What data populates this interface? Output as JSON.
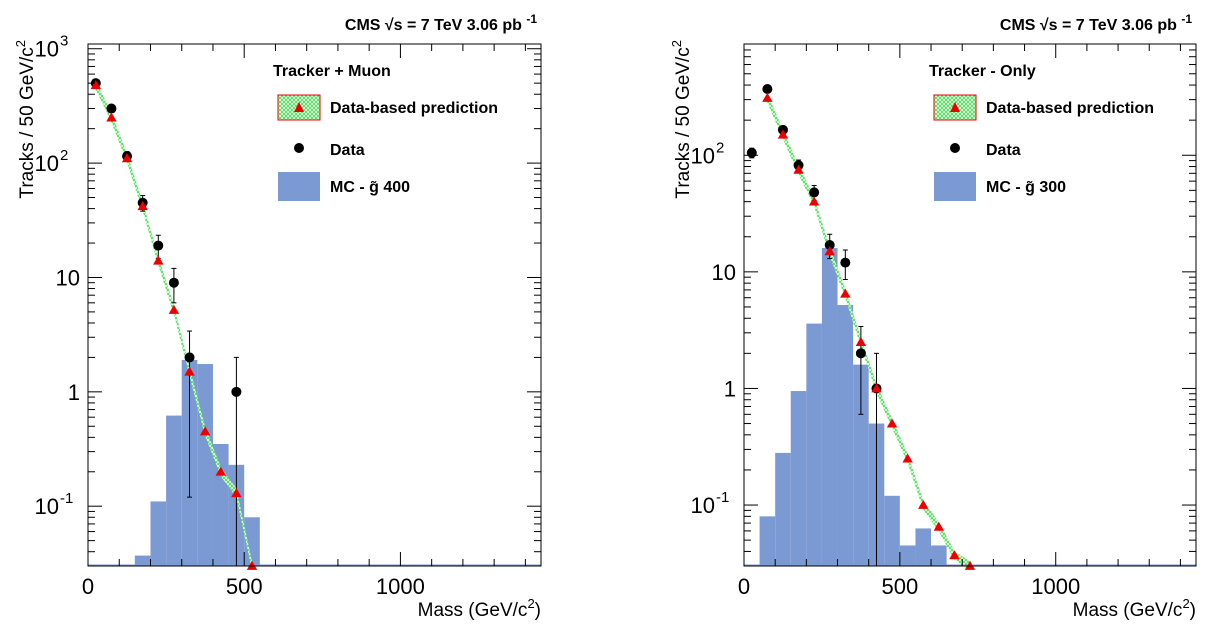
{
  "chart_data": [
    {
      "type": "bar",
      "header": {
        "experiment": "CMS",
        "energy": "√s = 7 TeV",
        "lumi": "3.06 pb",
        "lumi_exp": "-1"
      },
      "legend_title": "Tracker + Muon",
      "legend": {
        "prediction": "Data-based prediction",
        "data": "Data",
        "mc": "MC - g̃ 400"
      },
      "xlabel": "Mass (GeV/c",
      "xlabel_exp": "2",
      "xlabel_end": ")",
      "ylabel": "Tracks / 50 GeV/c",
      "ylabel_exp": "2",
      "xlim": [
        0,
        1450
      ],
      "ylim": [
        0.03,
        1100
      ],
      "y_scale": "log",
      "x_ticks": [
        {
          "value": 0,
          "label": "0"
        },
        {
          "value": 500,
          "label": "500"
        },
        {
          "value": 1000,
          "label": "1000"
        }
      ],
      "y_ticks": [
        {
          "value": 0.1,
          "base": "10",
          "exp": "-1"
        },
        {
          "value": 1,
          "base": "1",
          "exp": ""
        },
        {
          "value": 10,
          "base": "10",
          "exp": ""
        },
        {
          "value": 100,
          "base": "10",
          "exp": "2"
        },
        {
          "value": 1000,
          "base": "10",
          "exp": "3"
        }
      ],
      "mc_histogram": {
        "bin_edges": [
          150,
          200,
          250,
          300,
          350,
          400,
          450,
          500,
          550
        ],
        "values": [
          0.037,
          0.11,
          0.62,
          1.9,
          1.75,
          0.35,
          0.23,
          0.08
        ]
      },
      "data_points": [
        {
          "x": 25,
          "y": 500,
          "err_lo": 22,
          "err_hi": 22
        },
        {
          "x": 75,
          "y": 300,
          "err_lo": 17,
          "err_hi": 17
        },
        {
          "x": 125,
          "y": 115,
          "err_lo": 11,
          "err_hi": 11
        },
        {
          "x": 175,
          "y": 45,
          "err_lo": 7,
          "err_hi": 7
        },
        {
          "x": 225,
          "y": 19,
          "err_lo": 4.4,
          "err_hi": 4.4
        },
        {
          "x": 275,
          "y": 9,
          "err_lo": 3,
          "err_hi": 3
        },
        {
          "x": 325,
          "y": 2,
          "err_lo": 1.88,
          "err_hi": 1.4
        },
        {
          "x": 475,
          "y": 1,
          "err_lo": 0.97,
          "err_hi": 1.0
        }
      ],
      "prediction": {
        "x": [
          25,
          75,
          125,
          175,
          225,
          275,
          325,
          375,
          425,
          475,
          525
        ],
        "y": [
          480,
          250,
          110,
          42,
          14,
          5.2,
          1.5,
          0.45,
          0.2,
          0.13,
          0.03
        ]
      }
    },
    {
      "type": "bar",
      "header": {
        "experiment": "CMS",
        "energy": "√s = 7 TeV",
        "lumi": "3.06 pb",
        "lumi_exp": "-1"
      },
      "legend_title": "Tracker - Only",
      "legend": {
        "prediction": "Data-based prediction",
        "data": "Data",
        "mc": "MC - g̃ 300"
      },
      "xlabel": "Mass (GeV/c",
      "xlabel_exp": "2",
      "xlabel_end": ")",
      "ylabel": "Tracks / 50 GeV/c",
      "ylabel_exp": "2",
      "xlim": [
        0,
        1450
      ],
      "ylim": [
        0.03,
        900
      ],
      "y_scale": "log",
      "x_ticks": [
        {
          "value": 0,
          "label": "0"
        },
        {
          "value": 500,
          "label": "500"
        },
        {
          "value": 1000,
          "label": "1000"
        }
      ],
      "y_ticks": [
        {
          "value": 0.1,
          "base": "10",
          "exp": "-1"
        },
        {
          "value": 1,
          "base": "1",
          "exp": ""
        },
        {
          "value": 10,
          "base": "10",
          "exp": ""
        },
        {
          "value": 100,
          "base": "10",
          "exp": "2"
        }
      ],
      "mc_histogram": {
        "bin_edges": [
          50,
          100,
          150,
          200,
          250,
          300,
          350,
          400,
          450,
          500,
          550,
          600,
          650
        ],
        "values": [
          0.08,
          0.28,
          0.95,
          3.6,
          16,
          5.2,
          1.6,
          0.5,
          0.12,
          0.045,
          0.063,
          0.045
        ]
      },
      "data_points": [
        {
          "x": 25,
          "y": 105,
          "err_lo": 10,
          "err_hi": 10
        },
        {
          "x": 75,
          "y": 370,
          "err_lo": 19,
          "err_hi": 19
        },
        {
          "x": 125,
          "y": 165,
          "err_lo": 13,
          "err_hi": 13
        },
        {
          "x": 175,
          "y": 82,
          "err_lo": 9,
          "err_hi": 9
        },
        {
          "x": 225,
          "y": 48,
          "err_lo": 7,
          "err_hi": 7
        },
        {
          "x": 275,
          "y": 17,
          "err_lo": 4,
          "err_hi": 4
        },
        {
          "x": 325,
          "y": 12,
          "err_lo": 3.4,
          "err_hi": 3.4
        },
        {
          "x": 375,
          "y": 2,
          "err_lo": 1.4,
          "err_hi": 1.4
        },
        {
          "x": 425,
          "y": 1,
          "err_lo": 0.98,
          "err_hi": 1.0
        }
      ],
      "prediction": {
        "x": [
          75,
          125,
          175,
          225,
          275,
          325,
          375,
          425,
          475,
          525,
          575,
          625,
          675,
          725
        ],
        "y": [
          310,
          150,
          75,
          40,
          15,
          6.5,
          2.5,
          1.0,
          0.5,
          0.25,
          0.1,
          0.065,
          0.037,
          0.03
        ]
      }
    }
  ]
}
